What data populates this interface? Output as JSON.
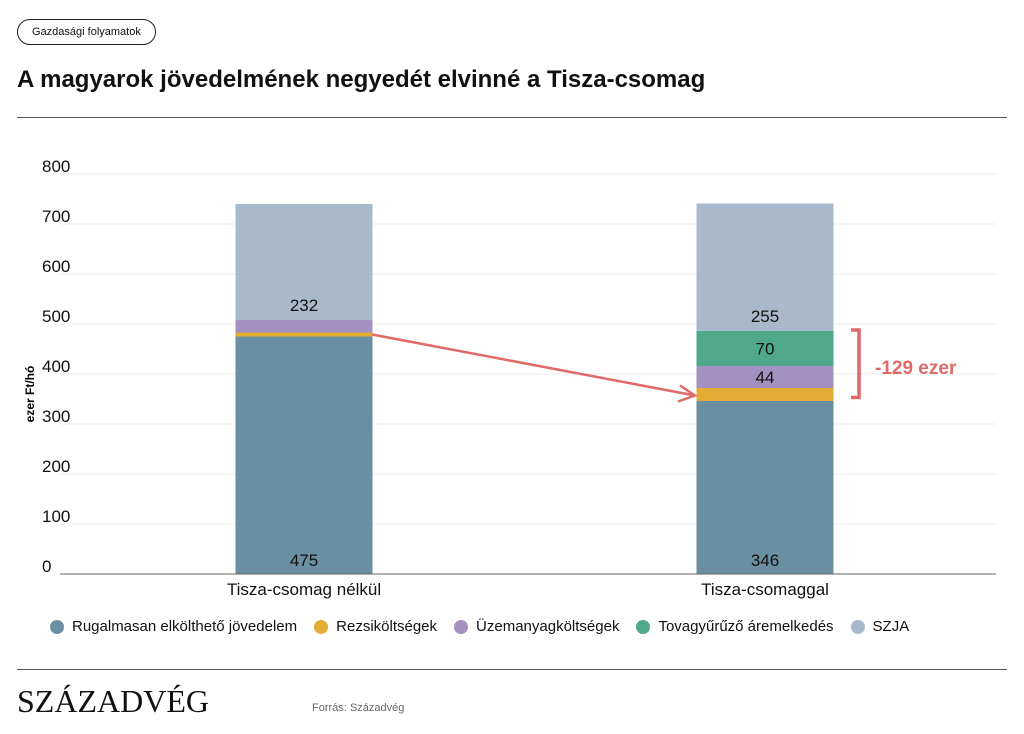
{
  "tag": "Gazdasági folyamatok",
  "title": "A magyarok jövedelmének negyedét elvinné a Tisza-csomag",
  "source": "Forrás: Századvég",
  "logo": "SZÁZADVÉG",
  "chart_data": {
    "type": "bar",
    "stacked": true,
    "ylabel": "ezer Ft/hó",
    "ylim": [
      0,
      800
    ],
    "yticks": [
      "0",
      "100",
      "200",
      "300",
      "400",
      "500",
      "600",
      "700",
      "800"
    ],
    "grid": true,
    "legend_position": "bottom",
    "categories": [
      "Tisza-csomag nélkül",
      "Tisza-csomaggal"
    ],
    "series": [
      {
        "name": "Rugalmasan elkölthető jövedelem",
        "color": "#6a8fa3",
        "values": [
          475,
          346
        ],
        "labels": [
          "475",
          "346"
        ]
      },
      {
        "name": "Rezsiköltségek",
        "color": "#e3ac33",
        "values": [
          8,
          26
        ],
        "labels": [
          "",
          ""
        ]
      },
      {
        "name": "Üzemanyagköltségek",
        "color": "#a391bf",
        "values": [
          25,
          44
        ],
        "labels": [
          "",
          "44"
        ]
      },
      {
        "name": "Tovagyűrűző áremelkedés",
        "color": "#4fa88a",
        "values": [
          0,
          70
        ],
        "labels": [
          "",
          "70"
        ]
      },
      {
        "name": "SZJA",
        "color": "#a8b9cb",
        "values": [
          232,
          255
        ],
        "labels": [
          "232",
          "255"
        ]
      }
    ],
    "annotation": {
      "text": "-129 ezer",
      "color": "#e06a68"
    }
  }
}
